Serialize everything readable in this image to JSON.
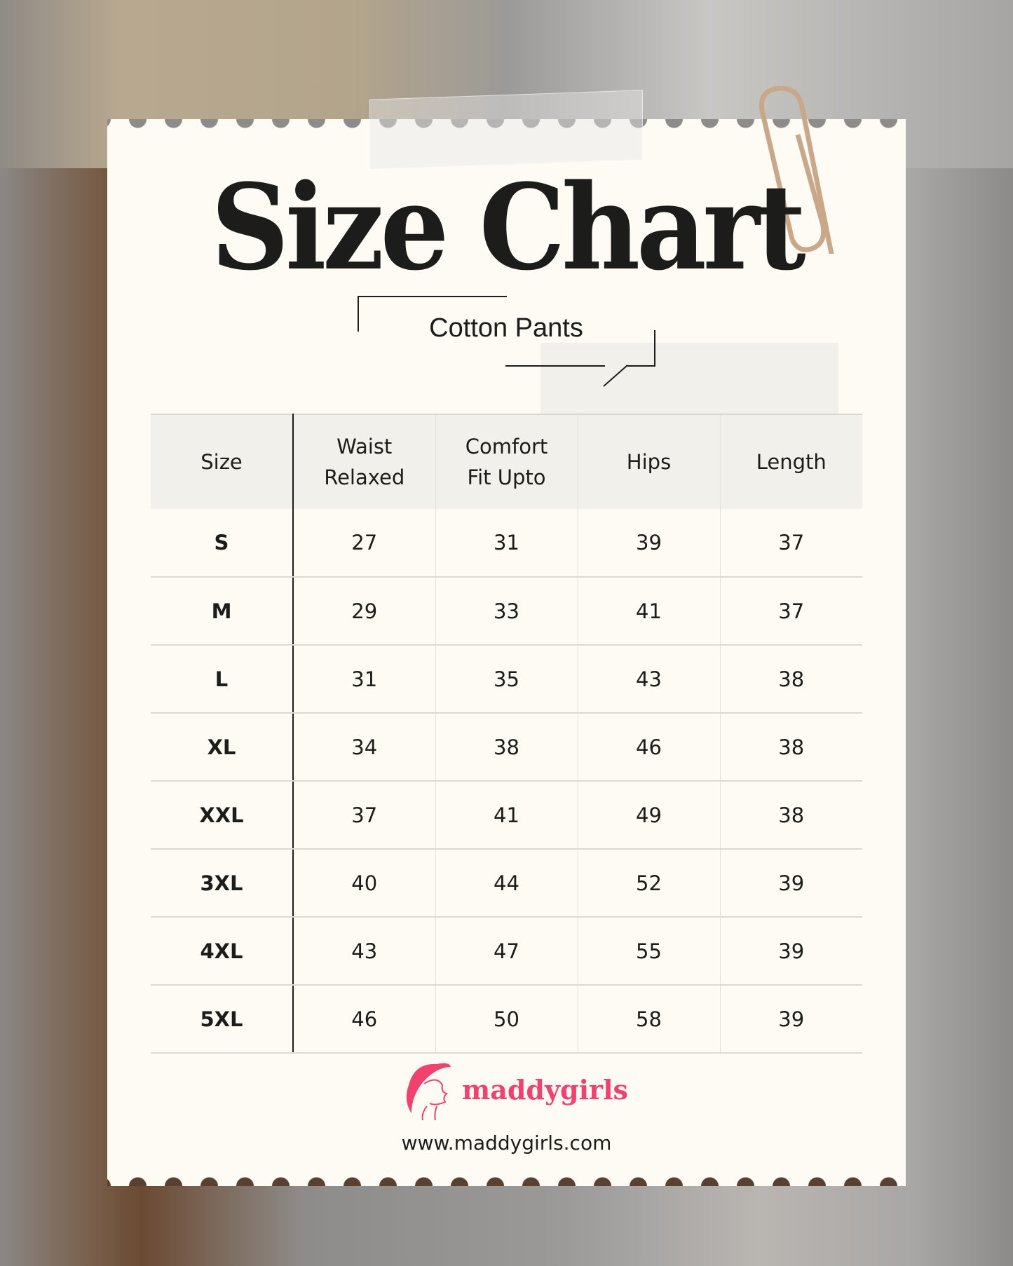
{
  "title": "Size Chart",
  "subtitle": "Cotton Pants",
  "table": {
    "headers": [
      "Size",
      "Waist Relaxed",
      "Comfort Fit Upto",
      "Hips",
      "Length"
    ],
    "rows": [
      [
        "S",
        "27",
        "31",
        "39",
        "37"
      ],
      [
        "M",
        "29",
        "33",
        "41",
        "37"
      ],
      [
        "L",
        "31",
        "35",
        "43",
        "38"
      ],
      [
        "XL",
        "34",
        "38",
        "46",
        "38"
      ],
      [
        "XXL",
        "37",
        "41",
        "49",
        "38"
      ],
      [
        "3XL",
        "40",
        "44",
        "52",
        "39"
      ],
      [
        "4XL",
        "43",
        "47",
        "55",
        "39"
      ],
      [
        "5XL",
        "46",
        "50",
        "58",
        "39"
      ]
    ]
  },
  "brand": {
    "name": "maddygirls",
    "url": "www.maddygirls.com",
    "color": "#f0416f"
  }
}
